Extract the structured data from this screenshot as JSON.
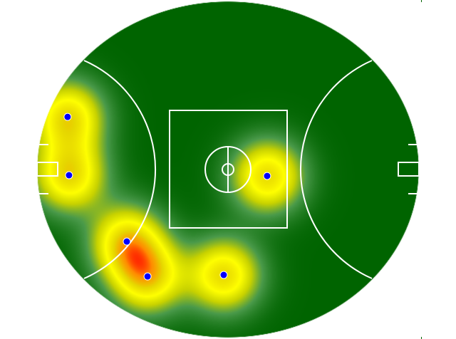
{
  "field": {
    "type": "afl-oval-heatmap",
    "colors": {
      "grass": "#006400",
      "low": "#4a9a4a",
      "mid": "#ffff00",
      "high": "#ff0000",
      "lines": "#ffffff",
      "marker": "#0000ff"
    }
  },
  "markers": [
    {
      "x": -67.2,
      "y": 21.1
    },
    {
      "x": -66.6,
      "y": -2.3
    },
    {
      "x": -42.4,
      "y": -28.9
    },
    {
      "x": -33.7,
      "y": -42.9
    },
    {
      "x": -1.8,
      "y": -42.3
    },
    {
      "x": 16.4,
      "y": -2.6
    }
  ]
}
